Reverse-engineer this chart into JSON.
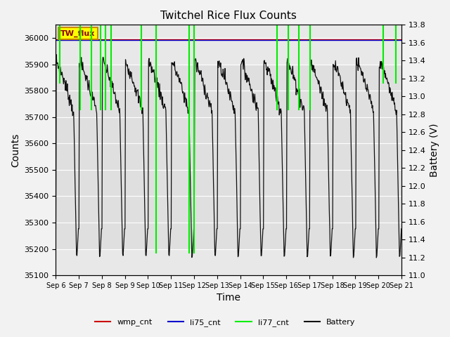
{
  "title": "Twitchel Rice Flux Counts",
  "ylabel_left": "Counts",
  "ylabel_right": "Battery (V)",
  "xlabel": "Time",
  "ylim_left": [
    35100,
    36050
  ],
  "ylim_right": [
    11.0,
    13.8
  ],
  "xtick_positions": [
    0,
    1,
    2,
    3,
    4,
    5,
    6,
    7,
    8,
    9,
    10,
    11,
    12,
    13,
    14,
    15
  ],
  "x_tick_labels": [
    "Sep 6",
    "Sep 7",
    "Sep 8",
    "Sep 9",
    "Sep 10",
    "Sep 11",
    "Sep 12",
    "Sep 13",
    "Sep 14",
    "Sep 15",
    "Sep 16",
    "Sep 17",
    "Sep 18",
    "Sep 19",
    "Sep 20",
    "Sep 21"
  ],
  "yticks_left": [
    35100,
    35200,
    35300,
    35400,
    35500,
    35600,
    35700,
    35800,
    35900,
    36000
  ],
  "yticks_right": [
    11.0,
    11.2,
    11.4,
    11.6,
    11.8,
    12.0,
    12.2,
    12.4,
    12.6,
    12.8,
    13.0,
    13.2,
    13.4,
    13.6,
    13.8
  ],
  "bg_color": "#f2f2f2",
  "plot_bg_color": "#e8e8e8",
  "li77_color": "#00ee00",
  "battery_color": "#111111",
  "wmp_color": "#cc0000",
  "li75_color": "#0000cc",
  "annotation_text": "TW_flux",
  "annot_facecolor": "#ffff00",
  "annot_edgecolor": "#cc8800",
  "n_days": 15,
  "li77_spikes": [
    0.18,
    1.05,
    1.55,
    1.95,
    2.15,
    2.4,
    3.7,
    4.35,
    5.8,
    6.0,
    9.6,
    10.1,
    10.55,
    11.05,
    14.2,
    14.75
  ],
  "li77_spike_bottoms": [
    35830,
    35730,
    35730,
    35730,
    35730,
    35730,
    35730,
    35185,
    35185,
    35185,
    35730,
    35730,
    35730,
    35730,
    35830,
    35830
  ],
  "band1_ymin": 35200,
  "band1_ymax": 35900,
  "band_color": "#e0e0e0"
}
